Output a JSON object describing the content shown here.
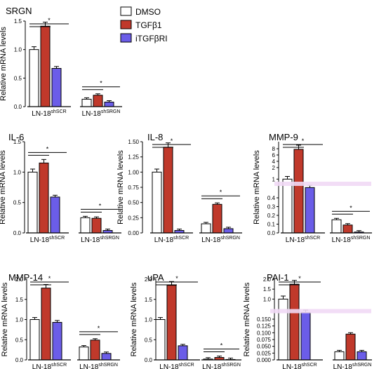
{
  "colors": {
    "DMSO": "#ffffff",
    "TGFb1": "#c0392b",
    "iTGFbRI": "#6b5de8",
    "stroke": "#000000",
    "break": "#f1d9f5"
  },
  "legend": [
    {
      "label": "DMSO",
      "color": "#ffffff"
    },
    {
      "label": "TGFβ1",
      "color": "#c0392b"
    },
    {
      "label": "iTGFβRI",
      "color": "#6b5de8"
    }
  ],
  "chart_data": [
    {
      "type": "bar",
      "title": "SRGN",
      "ylabel": "Relative mRNA levels",
      "ylim": [
        0,
        1.5
      ],
      "yticks": [
        "0.0",
        "0.5",
        "1.0",
        "1.5"
      ],
      "groups": [
        {
          "label": "LN-18",
          "sup": "shSCR"
        },
        {
          "label": "LN-18",
          "sup": "shSRGN"
        }
      ],
      "series": [
        {
          "name": "DMSO",
          "values": [
            1.0,
            0.13
          ]
        },
        {
          "name": "TGFβ1",
          "values": [
            1.41,
            0.2
          ]
        },
        {
          "name": "iTGFβRI",
          "values": [
            0.67,
            0.08
          ]
        }
      ],
      "significance": [
        "*",
        "*"
      ]
    },
    {
      "type": "bar",
      "title": "IL-6",
      "ylabel": "Relative mRNA levels",
      "ylim": [
        0,
        1.5
      ],
      "yticks": [
        "0.0",
        "0.5",
        "1.0",
        "1.5"
      ],
      "groups": [
        {
          "label": "LN-18",
          "sup": "shSCR"
        },
        {
          "label": "LN-18",
          "sup": "shSRGN"
        }
      ],
      "series": [
        {
          "name": "DMSO",
          "values": [
            1.0,
            0.25
          ]
        },
        {
          "name": "TGFβ1",
          "values": [
            1.15,
            0.24
          ]
        },
        {
          "name": "iTGFβRI",
          "values": [
            0.59,
            0.04
          ]
        }
      ],
      "significance": [
        "*",
        "*"
      ]
    },
    {
      "type": "bar",
      "title": "IL-8",
      "ylabel": "Relative mRNA levels",
      "ylim": [
        0,
        1.5
      ],
      "yticks": [
        "0.00",
        "0.25",
        "0.50",
        "0.75",
        "1.00",
        "1.25",
        "1.50"
      ],
      "groups": [
        {
          "label": "LN-18",
          "sup": "shSCR"
        },
        {
          "label": "LN-18",
          "sup": "shSRGN"
        }
      ],
      "series": [
        {
          "name": "DMSO",
          "values": [
            1.0,
            0.15
          ]
        },
        {
          "name": "TGFβ1",
          "values": [
            1.41,
            0.47
          ]
        },
        {
          "name": "iTGFβRI",
          "values": [
            0.04,
            0.07
          ]
        }
      ],
      "significance": [
        "*",
        "*"
      ]
    },
    {
      "type": "bar",
      "title": "MMP-9",
      "ylabel": "Relative mRNA levels",
      "yaxis_break": true,
      "yticks": [
        "0.0",
        "0.1",
        "0.2",
        "0.3",
        "0.4",
        "1",
        "2",
        "4",
        "6",
        "8"
      ],
      "groups": [
        {
          "label": "LN-18",
          "sup": "shSCR"
        },
        {
          "label": "LN-18",
          "sup": "shSRGN"
        }
      ],
      "series": [
        {
          "name": "DMSO",
          "values": [
            1.0,
            0.15
          ]
        },
        {
          "name": "TGFβ1",
          "values": [
            7.8,
            0.09
          ]
        },
        {
          "name": "iTGFβRI",
          "values": [
            0.73,
            0.01
          ]
        }
      ],
      "significance": [
        "*",
        "*"
      ]
    },
    {
      "type": "bar",
      "title": "MMP-14",
      "ylabel": "Relative mRNA levels",
      "ylim": [
        0,
        2.0
      ],
      "yticks": [
        "0.0",
        "0.5",
        "1.0",
        "1.5",
        "2.0"
      ],
      "groups": [
        {
          "label": "LN-18",
          "sup": "shSCR"
        },
        {
          "label": "LN-18",
          "sup": "shSRGN"
        }
      ],
      "series": [
        {
          "name": "DMSO",
          "values": [
            1.0,
            0.32
          ]
        },
        {
          "name": "TGFβ1",
          "values": [
            1.78,
            0.49
          ]
        },
        {
          "name": "iTGFβRI",
          "values": [
            0.93,
            0.16
          ]
        }
      ],
      "significance": [
        "*",
        "*"
      ]
    },
    {
      "type": "bar",
      "title": "uPA",
      "ylabel": "Relative mRNA levels",
      "ylim": [
        0,
        2.0
      ],
      "yticks": [
        "0.0",
        "0.5",
        "1.0",
        "1.5",
        "2.0"
      ],
      "groups": [
        {
          "label": "LN-18",
          "sup": "shSCR"
        },
        {
          "label": "LN-18",
          "sup": "shSRGN"
        }
      ],
      "series": [
        {
          "name": "DMSO",
          "values": [
            1.0,
            0.02
          ]
        },
        {
          "name": "TGFβ1",
          "values": [
            1.85,
            0.06
          ]
        },
        {
          "name": "iTGFβRI",
          "values": [
            0.35,
            0.01
          ]
        }
      ],
      "significance": [
        "*",
        "*"
      ]
    },
    {
      "type": "bar",
      "title": "PAI-1",
      "ylabel": "Relative mRNA levels",
      "yaxis_break": true,
      "yticks": [
        "0.000",
        "0.025",
        "0.050",
        "0.075",
        "0.100",
        "0.125",
        "0.150",
        "1.0",
        "1.5",
        "2.0"
      ],
      "groups": [
        {
          "label": "LN-18",
          "sup": "shSCR"
        },
        {
          "label": "LN-18",
          "sup": "shSRGN"
        }
      ],
      "series": [
        {
          "name": "DMSO",
          "values": [
            1.0,
            0.03
          ]
        },
        {
          "name": "TGFβ1",
          "values": [
            1.75,
            0.095
          ]
        },
        {
          "name": "iTGFβRI",
          "values": [
            0.42,
            0.03
          ]
        }
      ],
      "significance": [
        "*"
      ]
    }
  ]
}
